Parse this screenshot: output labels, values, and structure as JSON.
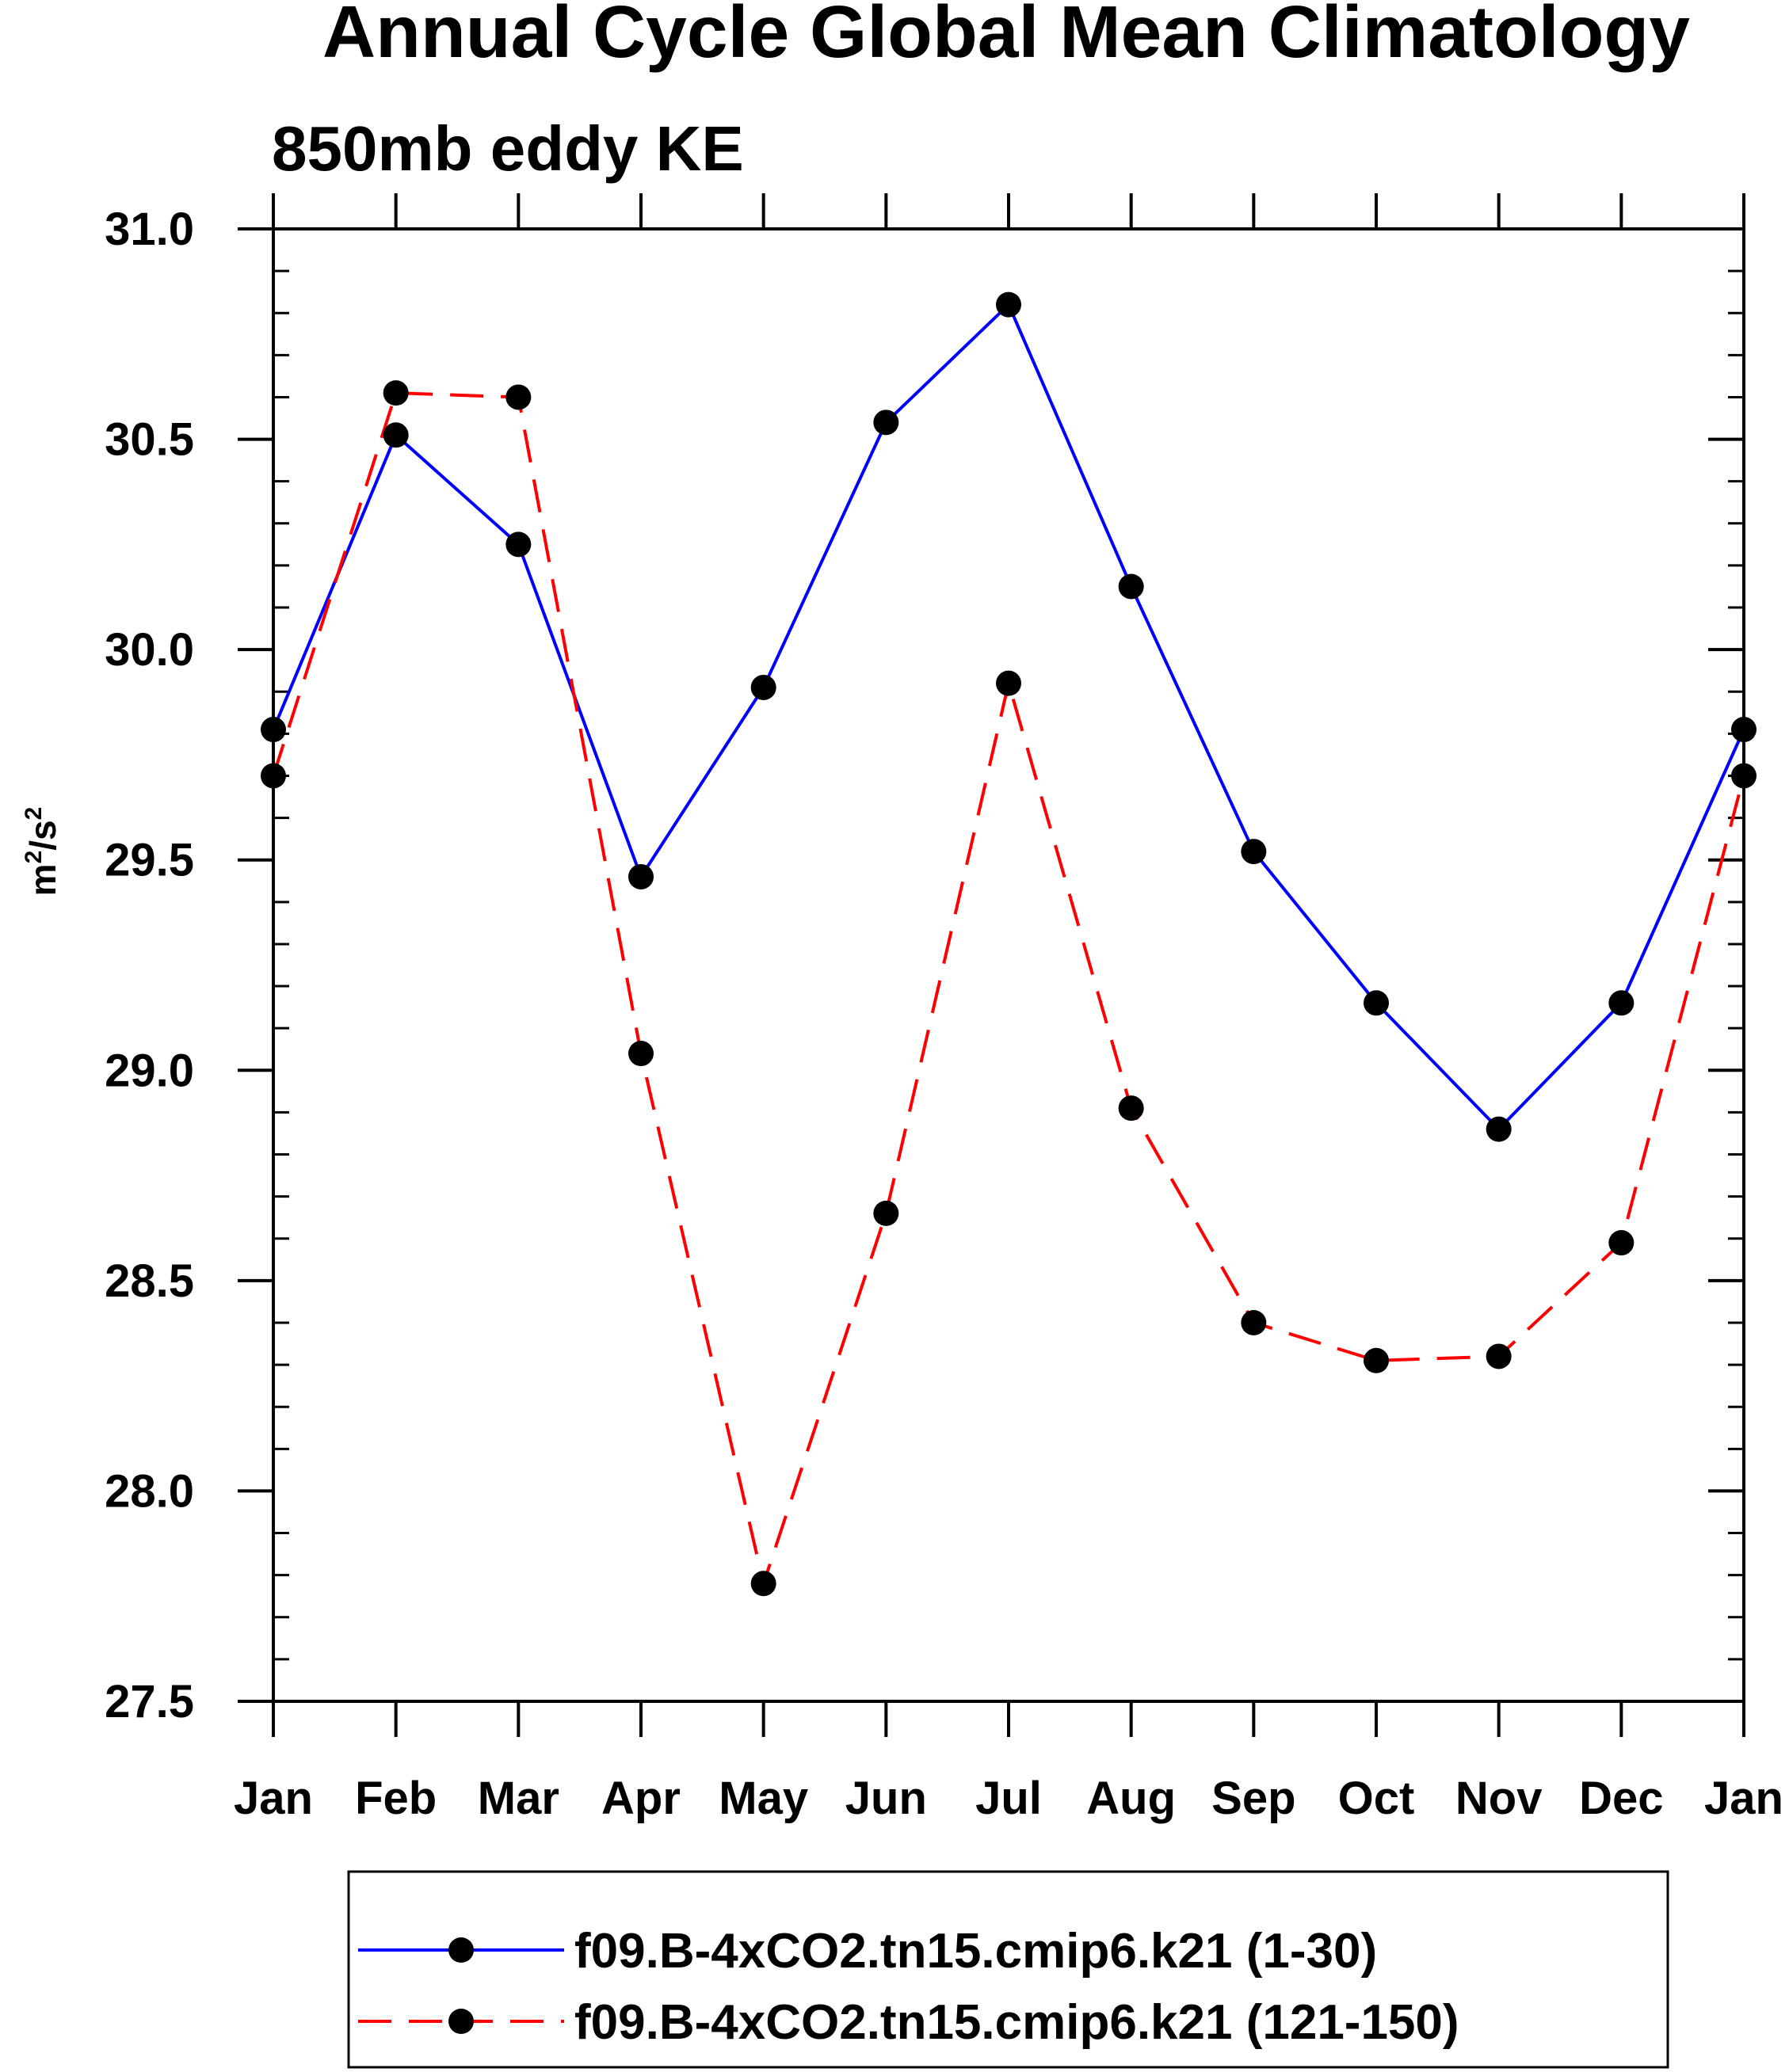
{
  "chart_data": {
    "type": "line",
    "title": "Annual Cycle Global Mean Climatology",
    "subtitle": "850mb eddy KE",
    "ylabel": {
      "base": "m",
      "sup1": "2",
      "mid": "/s",
      "sup2": "2"
    },
    "xlabel": "",
    "categories": [
      "Jan",
      "Feb",
      "Mar",
      "Apr",
      "May",
      "Jun",
      "Jul",
      "Aug",
      "Sep",
      "Oct",
      "Nov",
      "Dec",
      "Jan"
    ],
    "ylim": [
      27.5,
      31.0
    ],
    "yticks": [
      "27.5",
      "28.0",
      "28.5",
      "29.0",
      "29.5",
      "30.0",
      "30.5",
      "31.0"
    ],
    "y_minor_step": 0.1,
    "grid": false,
    "legend_position": "bottom",
    "series": [
      {
        "name": "f09.B-4xCO2.tn15.cmip6.k21 (1-30)",
        "color": "#0000ff",
        "dash": "solid",
        "marker": "filled-circle",
        "values": [
          29.81,
          30.51,
          30.25,
          29.46,
          29.91,
          30.54,
          30.82,
          30.15,
          29.52,
          29.16,
          28.86,
          29.16,
          29.81
        ]
      },
      {
        "name": "f09.B-4xCO2.tn15.cmip6.k21 (121-150)",
        "color": "#ff0000",
        "dash": "dashed",
        "marker": "filled-circle",
        "values": [
          29.7,
          30.61,
          30.6,
          29.04,
          27.78,
          28.66,
          29.92,
          28.91,
          28.4,
          28.31,
          28.32,
          28.59,
          29.7
        ]
      }
    ]
  }
}
